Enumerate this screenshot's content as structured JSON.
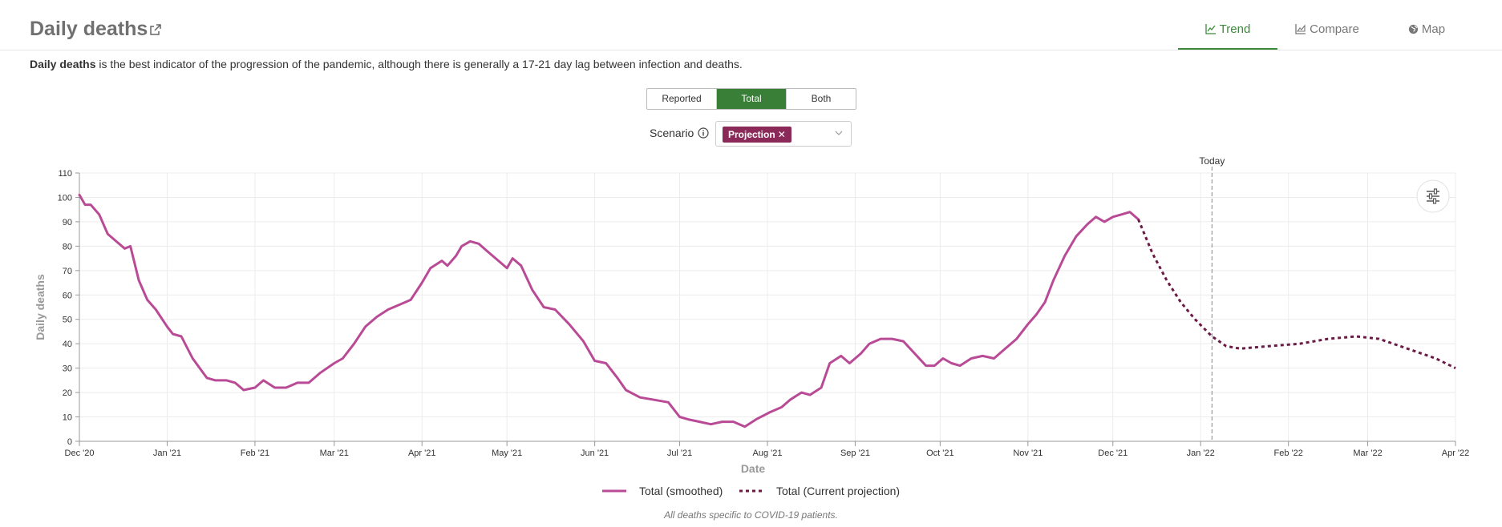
{
  "header": {
    "title": "Daily deaths",
    "tabs": [
      {
        "label": "Trend",
        "icon": "line-chart-icon",
        "active": true
      },
      {
        "label": "Compare",
        "icon": "area-chart-icon",
        "active": false
      },
      {
        "label": "Map",
        "icon": "globe-icon",
        "active": false
      }
    ]
  },
  "description": {
    "bold": "Daily deaths",
    "rest": " is the best indicator of the progression of the pandemic, although there is generally a 17-21 day lag between infection and deaths."
  },
  "toggle": {
    "options": [
      "Reported",
      "Total",
      "Both"
    ],
    "selected": "Total"
  },
  "scenario": {
    "label": "Scenario",
    "selected_chip": "Projection"
  },
  "footnote": "All deaths specific to COVID-19 patients.",
  "colors": {
    "accent": "#3a7f37",
    "smoothed": "#b94a96",
    "projection": "#6b1a45",
    "chip": "#8b2a58"
  },
  "chart_data": {
    "type": "line",
    "xlabel": "Date",
    "ylabel": "Daily deaths",
    "ylim": [
      0,
      110
    ],
    "yticks": [
      0,
      10,
      20,
      30,
      40,
      50,
      60,
      70,
      80,
      90,
      100,
      110
    ],
    "xticks": [
      "Dec '20",
      "Jan '21",
      "Feb '21",
      "Mar '21",
      "Apr '21",
      "May '21",
      "Jun '21",
      "Jul '21",
      "Aug '21",
      "Sep '21",
      "Oct '21",
      "Nov '21",
      "Dec '21",
      "Jan '22",
      "Feb '22",
      "Mar '22",
      "Apr '22"
    ],
    "xlim": [
      "2020-12-01",
      "2022-04-01"
    ],
    "grid": true,
    "legend": "bottom-center",
    "annotations": [
      {
        "label": "Today",
        "x": "2022-01-05"
      }
    ],
    "series": [
      {
        "name": "Total (smoothed)",
        "style": "solid",
        "points": [
          [
            "2020-12-01",
            101
          ],
          [
            "2020-12-03",
            97
          ],
          [
            "2020-12-05",
            97
          ],
          [
            "2020-12-08",
            93
          ],
          [
            "2020-12-11",
            85
          ],
          [
            "2020-12-15",
            81
          ],
          [
            "2020-12-17",
            79
          ],
          [
            "2020-12-19",
            80
          ],
          [
            "2020-12-22",
            66
          ],
          [
            "2020-12-25",
            58
          ],
          [
            "2020-12-28",
            54
          ],
          [
            "2021-01-01",
            47
          ],
          [
            "2021-01-03",
            44
          ],
          [
            "2021-01-06",
            43
          ],
          [
            "2021-01-10",
            34
          ],
          [
            "2021-01-15",
            26
          ],
          [
            "2021-01-18",
            25
          ],
          [
            "2021-01-22",
            25
          ],
          [
            "2021-01-25",
            24
          ],
          [
            "2021-01-28",
            21
          ],
          [
            "2021-02-01",
            22
          ],
          [
            "2021-02-04",
            25
          ],
          [
            "2021-02-08",
            22
          ],
          [
            "2021-02-12",
            22
          ],
          [
            "2021-02-16",
            24
          ],
          [
            "2021-02-20",
            24
          ],
          [
            "2021-02-24",
            28
          ],
          [
            "2021-03-01",
            32
          ],
          [
            "2021-03-04",
            34
          ],
          [
            "2021-03-08",
            40
          ],
          [
            "2021-03-12",
            47
          ],
          [
            "2021-03-16",
            51
          ],
          [
            "2021-03-20",
            54
          ],
          [
            "2021-03-24",
            56
          ],
          [
            "2021-03-28",
            58
          ],
          [
            "2021-04-01",
            65
          ],
          [
            "2021-04-04",
            71
          ],
          [
            "2021-04-08",
            74
          ],
          [
            "2021-04-10",
            72
          ],
          [
            "2021-04-13",
            76
          ],
          [
            "2021-04-15",
            80
          ],
          [
            "2021-04-18",
            82
          ],
          [
            "2021-04-21",
            81
          ],
          [
            "2021-04-24",
            78
          ],
          [
            "2021-04-28",
            74
          ],
          [
            "2021-05-01",
            71
          ],
          [
            "2021-05-03",
            75
          ],
          [
            "2021-05-06",
            72
          ],
          [
            "2021-05-10",
            62
          ],
          [
            "2021-05-14",
            55
          ],
          [
            "2021-05-18",
            54
          ],
          [
            "2021-05-23",
            48
          ],
          [
            "2021-05-28",
            41
          ],
          [
            "2021-06-01",
            33
          ],
          [
            "2021-06-05",
            32
          ],
          [
            "2021-06-09",
            26
          ],
          [
            "2021-06-12",
            21
          ],
          [
            "2021-06-17",
            18
          ],
          [
            "2021-06-22",
            17
          ],
          [
            "2021-06-27",
            16
          ],
          [
            "2021-07-01",
            10
          ],
          [
            "2021-07-04",
            9
          ],
          [
            "2021-07-08",
            8
          ],
          [
            "2021-07-12",
            7
          ],
          [
            "2021-07-16",
            8
          ],
          [
            "2021-07-20",
            8
          ],
          [
            "2021-07-24",
            6
          ],
          [
            "2021-07-28",
            9
          ],
          [
            "2021-08-02",
            12
          ],
          [
            "2021-08-06",
            14
          ],
          [
            "2021-08-09",
            17
          ],
          [
            "2021-08-13",
            20
          ],
          [
            "2021-08-16",
            19
          ],
          [
            "2021-08-20",
            22
          ],
          [
            "2021-08-23",
            32
          ],
          [
            "2021-08-27",
            35
          ],
          [
            "2021-08-30",
            32
          ],
          [
            "2021-09-03",
            36
          ],
          [
            "2021-09-06",
            40
          ],
          [
            "2021-09-10",
            42
          ],
          [
            "2021-09-14",
            42
          ],
          [
            "2021-09-18",
            41
          ],
          [
            "2021-09-22",
            36
          ],
          [
            "2021-09-26",
            31
          ],
          [
            "2021-09-29",
            31
          ],
          [
            "2021-10-02",
            34
          ],
          [
            "2021-10-05",
            32
          ],
          [
            "2021-10-08",
            31
          ],
          [
            "2021-10-12",
            34
          ],
          [
            "2021-10-16",
            35
          ],
          [
            "2021-10-20",
            34
          ],
          [
            "2021-10-24",
            38
          ],
          [
            "2021-10-28",
            42
          ],
          [
            "2021-11-01",
            48
          ],
          [
            "2021-11-04",
            52
          ],
          [
            "2021-11-07",
            57
          ],
          [
            "2021-11-10",
            66
          ],
          [
            "2021-11-14",
            76
          ],
          [
            "2021-11-18",
            84
          ],
          [
            "2021-11-22",
            89
          ],
          [
            "2021-11-25",
            92
          ],
          [
            "2021-11-28",
            90
          ],
          [
            "2021-12-01",
            92
          ],
          [
            "2021-12-04",
            93
          ],
          [
            "2021-12-07",
            94
          ],
          [
            "2021-12-10",
            91
          ]
        ]
      },
      {
        "name": "Total (Current projection)",
        "style": "dashed",
        "points": [
          [
            "2021-12-10",
            91
          ],
          [
            "2021-12-15",
            77
          ],
          [
            "2021-12-20",
            66
          ],
          [
            "2021-12-25",
            57
          ],
          [
            "2021-12-30",
            50
          ],
          [
            "2022-01-05",
            43
          ],
          [
            "2022-01-10",
            39
          ],
          [
            "2022-01-15",
            38
          ],
          [
            "2022-01-25",
            39
          ],
          [
            "2022-02-05",
            40
          ],
          [
            "2022-02-15",
            42
          ],
          [
            "2022-02-25",
            43
          ],
          [
            "2022-03-05",
            42
          ],
          [
            "2022-03-15",
            38
          ],
          [
            "2022-03-25",
            34
          ],
          [
            "2022-04-01",
            30
          ]
        ]
      }
    ]
  }
}
